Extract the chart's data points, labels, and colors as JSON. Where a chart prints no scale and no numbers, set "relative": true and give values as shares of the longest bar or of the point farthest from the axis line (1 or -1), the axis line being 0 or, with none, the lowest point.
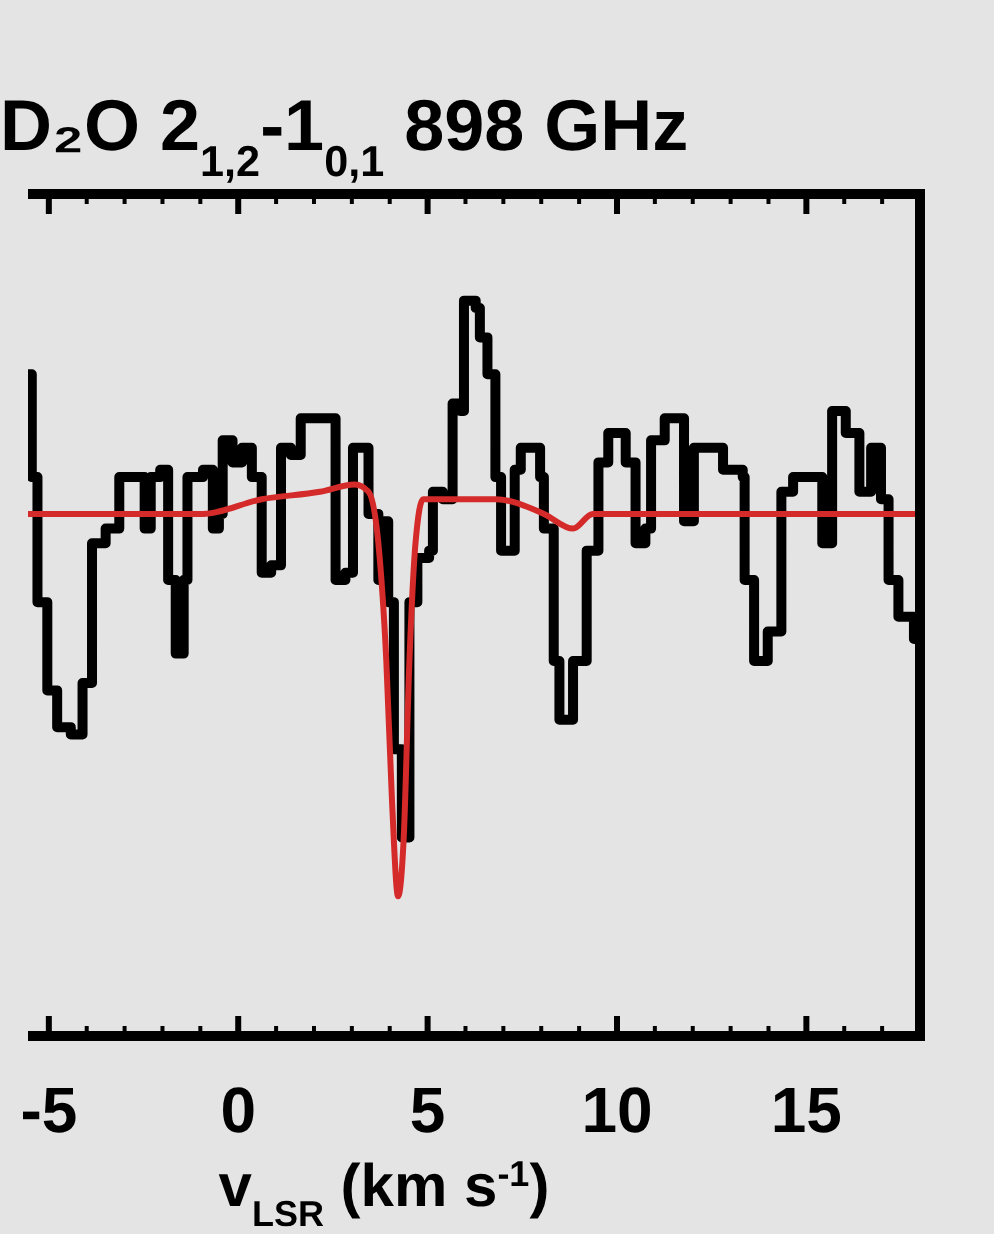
{
  "chart_data": {
    "type": "step",
    "title": "D₂O 2$_{1,2}$-1$_{0,1}$ 898 GHz",
    "xlabel": "v$_{LSR}$ (km s$^{-1}$)",
    "relative": true,
    "xlim": [
      -5.55,
      18
    ],
    "xticks": [
      -5,
      0,
      5,
      10,
      15
    ],
    "grid": false,
    "series": [
      {
        "color": "#000000",
        "x": [
          -5.55,
          -5.45,
          -5.3,
          -5.04,
          -4.78,
          -4.42,
          -4.11,
          -3.86,
          -3.5,
          -3.14,
          -2.72,
          -2.47,
          -2.31,
          -2.06,
          -1.85,
          -1.65,
          -1.44,
          -1.34,
          -0.93,
          -0.67,
          -0.51,
          -0.41,
          -0.15,
          0.1,
          0.36,
          0.62,
          0.87,
          1.13,
          1.39,
          1.65,
          1.9,
          2.16,
          2.42,
          2.57,
          2.83,
          3.03,
          3.19,
          3.44,
          3.7,
          3.86,
          3.96,
          4.11,
          4.32,
          4.52,
          4.73,
          5.04,
          5.14,
          5.4,
          5.66,
          5.86,
          5.96,
          6.27,
          6.38,
          6.58,
          6.79,
          6.94,
          7.3,
          7.46,
          7.97,
          8.07,
          8.33,
          8.48,
          8.84,
          9.2,
          9.51,
          9.77,
          10.23,
          10.49,
          10.75,
          10.9,
          11.26,
          11.57,
          11.77,
          12.03,
          12.44,
          12.8,
          13.32,
          13.37,
          13.62,
          13.98,
          14.34,
          14.65,
          15.12,
          15.42,
          15.68,
          16.04,
          16.4,
          16.71,
          16.97,
          17.17,
          17.43,
          17.84,
          18.0
        ],
        "values": [
          0.9,
          0.76,
          0.59,
          0.47,
          0.42,
          0.41,
          0.48,
          0.67,
          0.69,
          0.76,
          0.76,
          0.69,
          0.76,
          0.77,
          0.62,
          0.52,
          0.62,
          0.76,
          0.77,
          0.69,
          0.71,
          0.81,
          0.78,
          0.8,
          0.76,
          0.63,
          0.64,
          0.8,
          0.79,
          0.84,
          0.84,
          0.84,
          0.84,
          0.62,
          0.63,
          0.8,
          0.8,
          0.71,
          0.62,
          0.7,
          0.59,
          0.39,
          0.27,
          0.59,
          0.65,
          0.66,
          0.74,
          0.73,
          0.86,
          0.85,
          1.0,
          0.99,
          0.95,
          0.9,
          0.76,
          0.66,
          0.77,
          0.8,
          0.76,
          0.69,
          0.51,
          0.43,
          0.51,
          0.66,
          0.78,
          0.82,
          0.78,
          0.67,
          0.69,
          0.81,
          0.84,
          0.84,
          0.7,
          0.8,
          0.8,
          0.77,
          0.76,
          0.62,
          0.51,
          0.55,
          0.74,
          0.76,
          0.76,
          0.67,
          0.85,
          0.82,
          0.74,
          0.8,
          0.73,
          0.62,
          0.57,
          0.54,
          0.53
        ]
      },
      {
        "type": "line",
        "color": "#d42a2a",
        "x": [
          -5.55,
          -2.47,
          -0.93,
          0.62,
          2.16,
          3.08,
          3.44,
          3.7,
          3.91,
          4.06,
          4.22,
          4.37,
          4.52,
          4.68,
          4.88,
          5.24,
          6.79,
          8.07,
          8.84,
          9.36,
          18.0
        ],
        "values": [
          0.71,
          0.71,
          0.71,
          0.73,
          0.74,
          0.75,
          0.74,
          0.67,
          0.51,
          0.32,
          0.19,
          0.27,
          0.51,
          0.67,
          0.73,
          0.73,
          0.73,
          0.71,
          0.69,
          0.71,
          0.71
        ]
      }
    ]
  }
}
